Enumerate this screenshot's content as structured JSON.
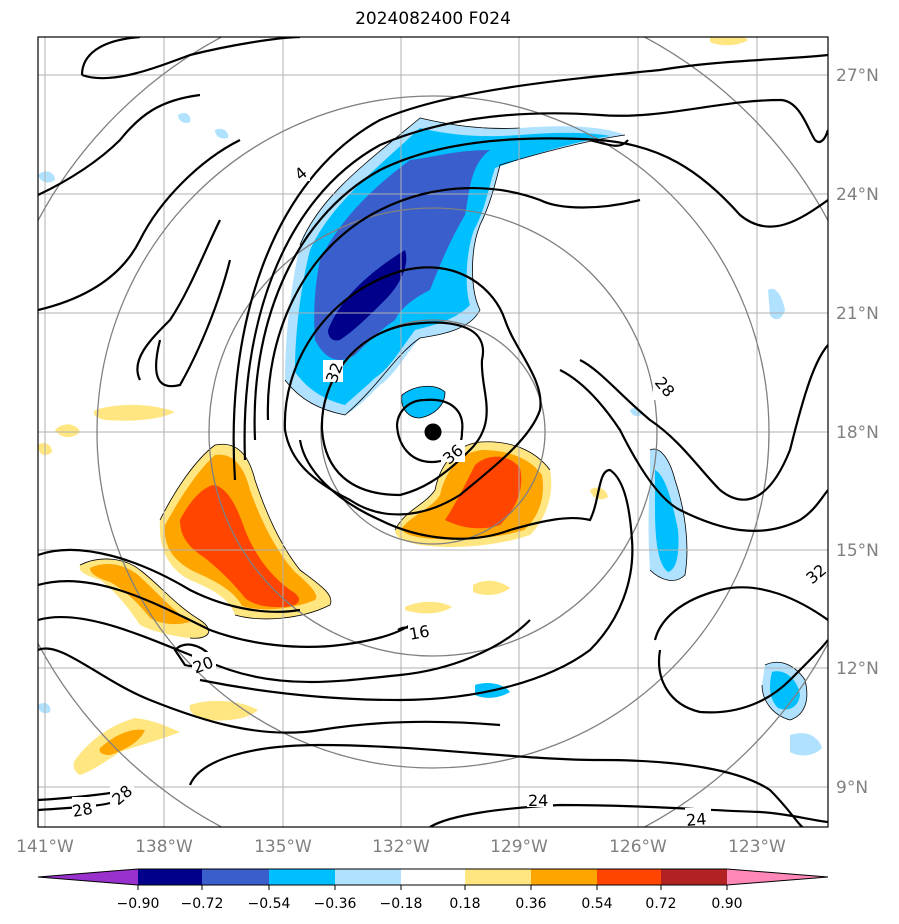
{
  "title": "2024082400 F024",
  "map": {
    "lat_labels": [
      "27°N",
      "24°N",
      "21°N",
      "18°N",
      "15°N",
      "12°N",
      "9°N"
    ],
    "lon_labels": [
      "141°W",
      "138°W",
      "135°W",
      "132°W",
      "129°W",
      "126°W",
      "123°W"
    ],
    "contour_labels": [
      "4",
      "32",
      "36",
      "28",
      "32",
      "16",
      "20",
      "28",
      "28",
      "24",
      "24"
    ],
    "storm_center": {
      "lat": "18°N",
      "lon": "131°W",
      "label": ""
    },
    "colors": {
      "contour": "#000000",
      "range_rings": "#808080",
      "grid": "#b0b0b0"
    }
  },
  "colorbar": {
    "ticks": [
      "−0.90",
      "−0.72",
      "−0.54",
      "−0.36",
      "−0.18",
      "0.18",
      "0.36",
      "0.54",
      "0.72",
      "0.90"
    ],
    "colors": [
      "#9932cc",
      "#00008b",
      "#3a5fcd",
      "#00bfff",
      "#b0e2ff",
      "#ffffff",
      "#ffe680",
      "#ffa500",
      "#ff4500",
      "#b22222",
      "#ff88b8"
    ]
  }
}
